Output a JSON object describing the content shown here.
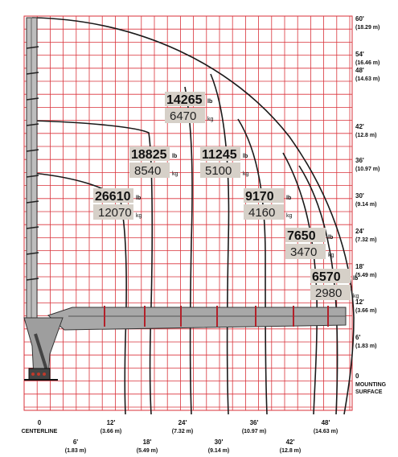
{
  "chart_data": {
    "type": "load-chart",
    "x_axis": {
      "ticks_upper": [
        {
          "ft": "0",
          "label": "0",
          "sub": "CENTERLINE"
        },
        {
          "ft": "12",
          "label": "12'",
          "sub": "(3.66 m)"
        },
        {
          "ft": "24",
          "label": "24'",
          "sub": "(7.32 m)"
        },
        {
          "ft": "36",
          "label": "36'",
          "sub": "(10.97 m)"
        },
        {
          "ft": "48",
          "label": "48'",
          "sub": "(14.63 m)"
        }
      ],
      "ticks_lower": [
        {
          "ft": "6",
          "label": "6'",
          "sub": "(1.83 m)"
        },
        {
          "ft": "18",
          "label": "18'",
          "sub": "(5.49 m)"
        },
        {
          "ft": "30",
          "label": "30'",
          "sub": "(9.14 m)"
        },
        {
          "ft": "42",
          "label": "42'",
          "sub": "(12.8 m)"
        }
      ]
    },
    "y_axis": {
      "ticks": [
        {
          "ft": "60",
          "label": "60'",
          "sub": "(18.29 m)"
        },
        {
          "ft": "54",
          "label": "54'",
          "sub": "(16.46 m)"
        },
        {
          "ft": "48",
          "label": "48'",
          "sub": "(14.63 m)"
        },
        {
          "ft": "42",
          "label": "42'",
          "sub": "(12.8 m)"
        },
        {
          "ft": "36",
          "label": "36'",
          "sub": "(10.97 m)"
        },
        {
          "ft": "30",
          "label": "30'",
          "sub": "(9.14 m)"
        },
        {
          "ft": "24",
          "label": "24'",
          "sub": "(7.32 m)"
        },
        {
          "ft": "18",
          "label": "18'",
          "sub": "(5.49 m)"
        },
        {
          "ft": "12",
          "label": "12'",
          "sub": "(3.66 m)"
        },
        {
          "ft": "6",
          "label": "6'",
          "sub": "(1.83 m)"
        },
        {
          "ft": "0",
          "label": "0",
          "sub": "MOUNTING",
          "sub2": "SURFACE"
        }
      ]
    },
    "capacities": [
      {
        "lb": "26610",
        "kg": "12070",
        "lb_unit": "lb",
        "kg_unit": "kg"
      },
      {
        "lb": "18825",
        "kg": "8540",
        "lb_unit": "lb",
        "kg_unit": "kg"
      },
      {
        "lb": "14265",
        "kg": "6470",
        "lb_unit": "lb",
        "kg_unit": "kg"
      },
      {
        "lb": "11245",
        "kg": "5100",
        "lb_unit": "lb",
        "kg_unit": "kg"
      },
      {
        "lb": "9170",
        "kg": "4160",
        "lb_unit": "lb",
        "kg_unit": "kg"
      },
      {
        "lb": "7650",
        "kg": "3470",
        "lb_unit": "lb",
        "kg_unit": "kg"
      },
      {
        "lb": "6570",
        "kg": "2980",
        "lb_unit": "lb",
        "kg_unit": "kg"
      }
    ],
    "colors": {
      "grid": "#d9323a",
      "label_bg": "#d6d0c8",
      "crane": "#9e9e9e",
      "curve": "#1a1a1a"
    }
  }
}
